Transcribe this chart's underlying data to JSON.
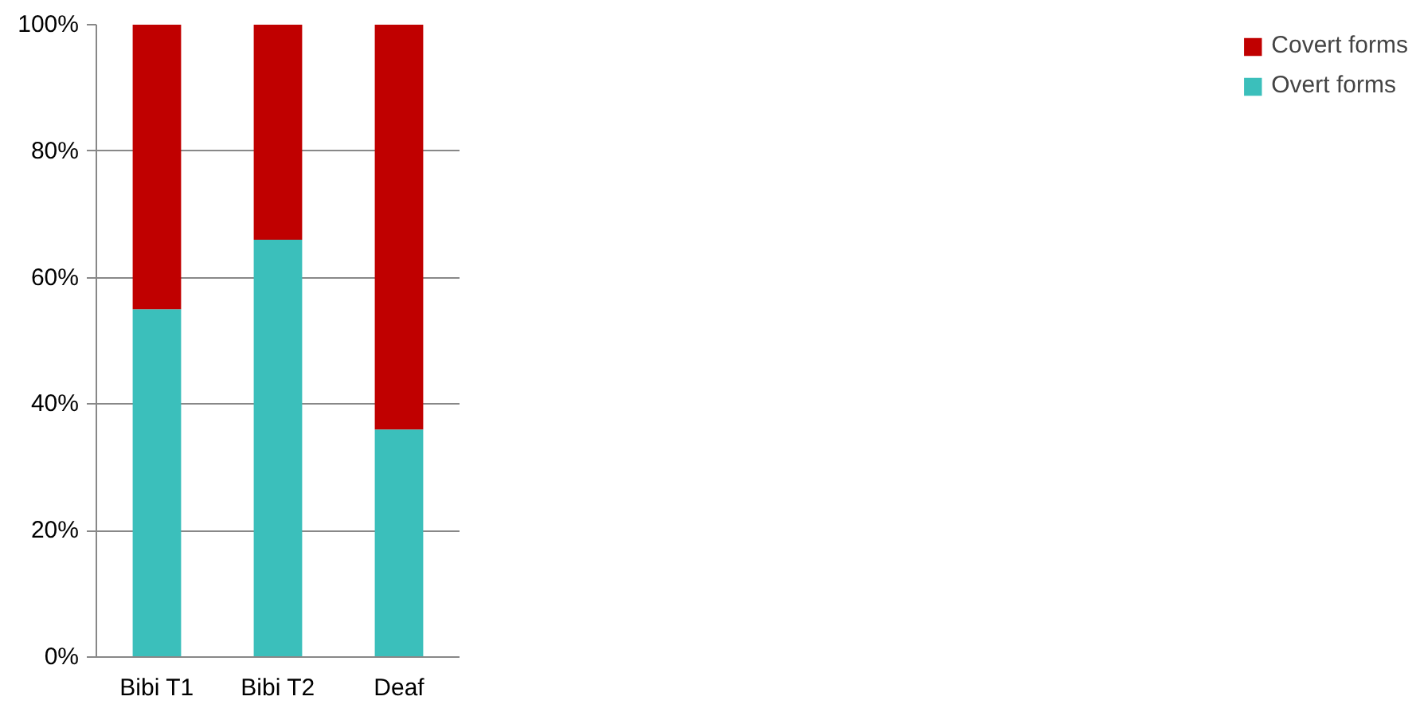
{
  "chart_data": {
    "type": "bar",
    "stacked": true,
    "categories": [
      "Bibi T1",
      "Bibi T2",
      "Deaf"
    ],
    "series": [
      {
        "name": "Overt forms",
        "color": "#3bbfbb",
        "values": [
          55,
          66,
          36
        ]
      },
      {
        "name": "Covert forms",
        "color": "#c00000",
        "values": [
          45,
          34,
          64
        ]
      }
    ],
    "ylim": [
      0,
      100
    ],
    "yticks": [
      {
        "value": 0,
        "label": "0%"
      },
      {
        "value": 20,
        "label": "20%"
      },
      {
        "value": 40,
        "label": "40%"
      },
      {
        "value": 60,
        "label": "60%"
      },
      {
        "value": 80,
        "label": "80%"
      },
      {
        "value": 100,
        "label": "100%"
      }
    ],
    "grid": "y",
    "legend": "right"
  }
}
